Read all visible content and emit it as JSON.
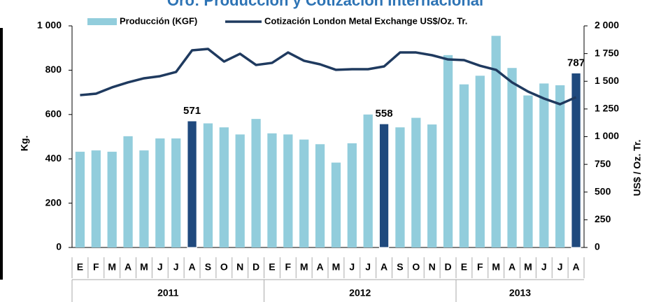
{
  "chart_data": {
    "type": "bar_line",
    "title": "Oro: Producción y Cotización Internacional",
    "y_label": "Kg.",
    "y2_label": "US$ / Oz. Tr.",
    "categories": [
      "E",
      "F",
      "M",
      "A",
      "M",
      "J",
      "J",
      "A",
      "S",
      "O",
      "N",
      "D",
      "E",
      "F",
      "M",
      "A",
      "M",
      "J",
      "J",
      "A",
      "S",
      "O",
      "N",
      "D",
      "E",
      "F",
      "M",
      "A",
      "M",
      "J",
      "J",
      "A"
    ],
    "groups": [
      "2011",
      "2012",
      "2013"
    ],
    "series": [
      {
        "name": "Producción (KGF)",
        "type": "bar",
        "color": "#92cddc",
        "highlight_color": "#1f497d",
        "values": [
          432,
          438,
          432,
          502,
          438,
          492,
          492,
          571,
          560,
          542,
          510,
          580,
          515,
          510,
          487,
          466,
          383,
          470,
          600,
          558,
          542,
          585,
          555,
          868,
          736,
          775,
          955,
          810,
          686,
          740,
          732,
          787
        ],
        "value_labels": [
          null,
          null,
          null,
          null,
          null,
          null,
          null,
          "571",
          null,
          null,
          null,
          null,
          null,
          null,
          null,
          null,
          null,
          null,
          null,
          "558",
          null,
          null,
          null,
          null,
          null,
          null,
          null,
          null,
          null,
          null,
          null,
          "787"
        ]
      },
      {
        "name": "Cotización London Metal Exchange US$/Oz. Tr.",
        "type": "line",
        "axis": "y2",
        "color": "#1f3a5f",
        "values": [
          1375,
          1388,
          1445,
          1490,
          1527,
          1546,
          1584,
          1779,
          1792,
          1678,
          1748,
          1647,
          1666,
          1760,
          1685,
          1653,
          1603,
          1609,
          1609,
          1634,
          1760,
          1760,
          1735,
          1697,
          1691,
          1640,
          1603,
          1490,
          1407,
          1344,
          1293,
          1356
        ]
      }
    ],
    "ylim": [
      0,
      1000
    ],
    "yticks": [
      0,
      200,
      400,
      600,
      800,
      {
        "value": 1000,
        "label": "1 000"
      }
    ],
    "y2lim": [
      0,
      2000
    ],
    "y2ticks": [
      0,
      250,
      500,
      750,
      {
        "value": 1000,
        "label": "1 000"
      },
      {
        "value": 1250,
        "label": "1 250"
      },
      {
        "value": 1500,
        "label": "1 500"
      },
      {
        "value": 1750,
        "label": "1 750"
      },
      {
        "value": 2000,
        "label": "2 000"
      }
    ]
  }
}
